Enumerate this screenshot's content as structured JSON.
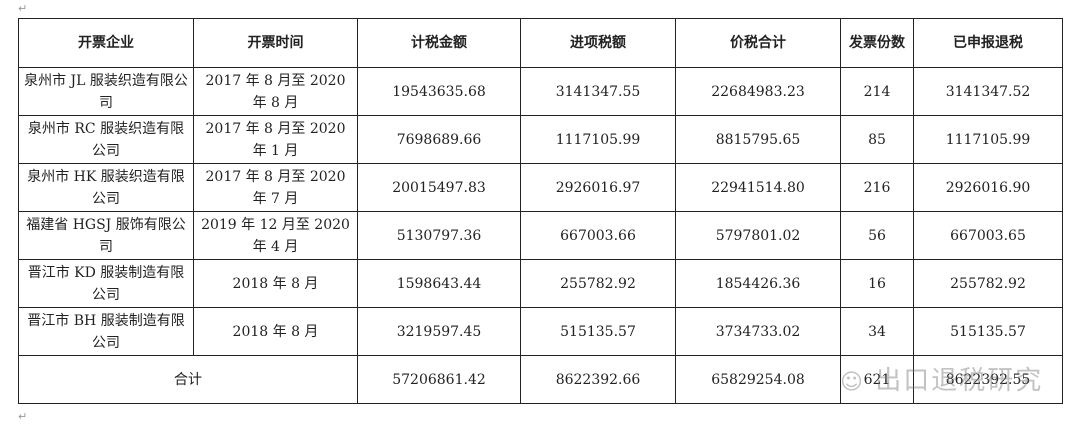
{
  "headers": [
    "开票企业",
    "开票时间",
    "计税金额",
    "进项税额",
    "价税合计",
    "发票份数",
    "已申报退税"
  ],
  "rows": [
    [
      "泉州市 JL 服装织造有限公司",
      "2017 年 8 月至 2020 年 8 月",
      "19543635.68",
      "3141347.55",
      "22684983.23",
      "214",
      "3141347.52"
    ],
    [
      "泉州市 RC 服装织造有限公司",
      "2017 年 8 月至 2020 年 1 月",
      "7698689.66",
      "1117105.99",
      "8815795.65",
      "85",
      "1117105.99"
    ],
    [
      "泉州市 HK 服装织造有限公司",
      "2017 年 8 月至 2020 年 7 月",
      "20015497.83",
      "2926016.97",
      "22941514.80",
      "216",
      "2926016.90"
    ],
    [
      "福建省 HGSJ 服饰有限公司",
      "2019 年 12 月至 2020 年 4 月",
      "5130797.36",
      "667003.66",
      "5797801.02",
      "56",
      "667003.65"
    ],
    [
      "晋江市 KD 服装制造有限公司",
      "2018 年 8 月",
      "1598643.44",
      "255782.92",
      "1854426.36",
      "16",
      "255782.92"
    ],
    [
      "晋江市 BH 服装制造有限公司",
      "2018 年 8 月",
      "3219597.45",
      "515135.57",
      "3734733.02",
      "34",
      "515135.57"
    ]
  ],
  "total": {
    "label": "合计",
    "tax_base": "57206861.42",
    "input_tax": "8622392.66",
    "total_with_tax": "65829254.08",
    "invoice_count": "621",
    "refund": "8622392.55"
  },
  "watermark": "出口退税研究"
}
